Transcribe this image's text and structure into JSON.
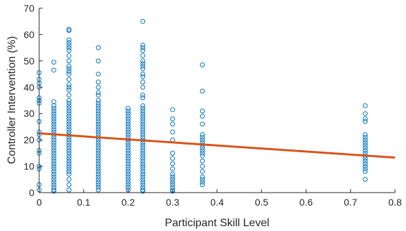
{
  "chart_data": {
    "type": "scatter",
    "xlabel": "Participant Skill Level",
    "ylabel": "Controller Intervention (%)",
    "xlim": [
      0,
      0.8
    ],
    "ylim": [
      0,
      70
    ],
    "xticks": [
      "0",
      "0.1",
      "0.2",
      "0.3",
      "0.4",
      "0.5",
      "0.6",
      "0.7",
      "0.8"
    ],
    "yticks": [
      "0",
      "10",
      "20",
      "30",
      "40",
      "50",
      "60",
      "70"
    ],
    "xtick_values": [
      0,
      0.1,
      0.2,
      0.3,
      0.4,
      0.5,
      0.6,
      0.7,
      0.8
    ],
    "ytick_values": [
      0,
      10,
      20,
      30,
      40,
      50,
      60,
      70
    ],
    "grid": false,
    "colors": {
      "points": "#0072BD",
      "fit_line": "#D95319",
      "axis": "#262626"
    },
    "series": [
      {
        "mode": "markers",
        "marker": "open-circle",
        "groups": [
          {
            "x": 0.0,
            "y": [
              45.5,
              43,
              41.5,
              40,
              36,
              35,
              34,
              27,
              23,
              22,
              20,
              16,
              15,
              10,
              9,
              3,
              1
            ]
          },
          {
            "x": 0.033,
            "y": [
              49.5,
              46.5,
              34.5,
              33,
              32,
              31,
              30,
              29,
              28,
              27,
              26,
              25,
              24,
              23,
              22,
              21,
              20,
              19,
              18,
              17,
              16,
              15,
              14,
              13,
              12,
              11,
              10,
              9,
              8,
              7,
              6,
              5,
              4,
              3,
              2,
              1,
              0.5
            ]
          },
          {
            "x": 0.067,
            "y": [
              62,
              61.5,
              58,
              57,
              56,
              55,
              54,
              52,
              50,
              48,
              47,
              46,
              45,
              43,
              41,
              40,
              39,
              37,
              35,
              34,
              33,
              32,
              31,
              30,
              29,
              28,
              27,
              26,
              25,
              24,
              23,
              22,
              21,
              20,
              19,
              18,
              17,
              16,
              15,
              14,
              13,
              12,
              11,
              10,
              9,
              8,
              7,
              5,
              3,
              1
            ]
          },
          {
            "x": 0.133,
            "y": [
              55,
              50,
              45,
              42,
              40,
              38,
              37,
              35,
              34,
              33,
              32,
              31,
              30,
              29,
              28,
              27,
              26,
              25,
              24,
              23,
              22,
              21,
              20,
              19,
              18,
              17,
              16,
              15,
              14,
              13,
              12,
              11,
              10,
              9,
              8,
              7,
              6,
              5,
              4,
              3,
              2,
              1
            ]
          },
          {
            "x": 0.2,
            "y": [
              32,
              31,
              30,
              29,
              28,
              27,
              26,
              25,
              24,
              23,
              22,
              21,
              20,
              19,
              18,
              17,
              16,
              15,
              14,
              13,
              12,
              11,
              10,
              9,
              8,
              7,
              6,
              5,
              4,
              3,
              2,
              1
            ]
          },
          {
            "x": 0.233,
            "y": [
              65,
              56,
              55,
              54,
              52,
              50,
              49,
              48,
              47,
              45,
              44,
              42,
              40,
              37,
              36,
              33,
              32,
              31,
              30,
              29,
              28,
              27,
              26,
              25,
              24,
              23,
              22,
              21,
              20,
              19,
              18,
              17,
              16,
              15,
              14,
              13,
              12,
              11,
              10,
              9,
              8,
              7,
              6,
              5,
              4,
              3,
              2,
              1,
              0.5
            ]
          },
          {
            "x": 0.3,
            "y": [
              31.5,
              28,
              26,
              23,
              20,
              15,
              13,
              11,
              9,
              7,
              6,
              5,
              4,
              3,
              2,
              1,
              0.5
            ]
          },
          {
            "x": 0.367,
            "y": [
              48.5,
              38.5,
              31,
              29,
              26,
              22,
              21,
              20,
              19,
              18,
              17,
              16,
              15,
              14,
              12,
              10,
              8,
              6,
              5,
              4,
              3
            ]
          },
          {
            "x": 0.733,
            "y": [
              33,
              30,
              28,
              27,
              22,
              21,
              20,
              19,
              18,
              17,
              16,
              15,
              14,
              13,
              12,
              11,
              10,
              9,
              8,
              5
            ]
          }
        ]
      },
      {
        "mode": "line",
        "x": [
          0,
          0.8
        ],
        "y": [
          22.5,
          13.3
        ]
      }
    ]
  }
}
